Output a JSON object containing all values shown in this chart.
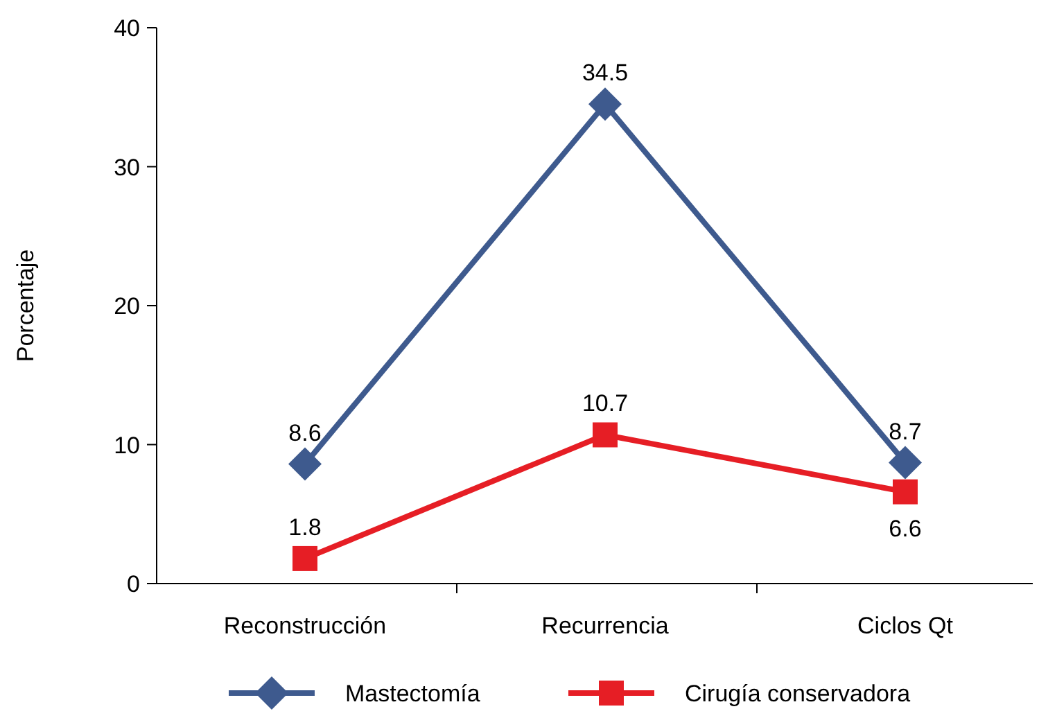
{
  "chart_data": {
    "type": "line",
    "ylabel": "Porcentaje",
    "categories": [
      "Reconstrucción",
      "Recurrencia",
      "Ciclos Qt"
    ],
    "series": [
      {
        "name": "Mastectomía",
        "color": "#3e5a8e",
        "marker": "diamond",
        "values": [
          8.6,
          34.5,
          8.7
        ]
      },
      {
        "name": "Cirugía conservadora",
        "color": "#e61e25",
        "marker": "square",
        "values": [
          1.8,
          10.7,
          6.6
        ]
      }
    ],
    "ylim": [
      0,
      40
    ],
    "yticks": [
      0,
      10,
      20,
      30,
      40
    ],
    "data_labels": true,
    "legend": "bottom",
    "grid": false
  }
}
